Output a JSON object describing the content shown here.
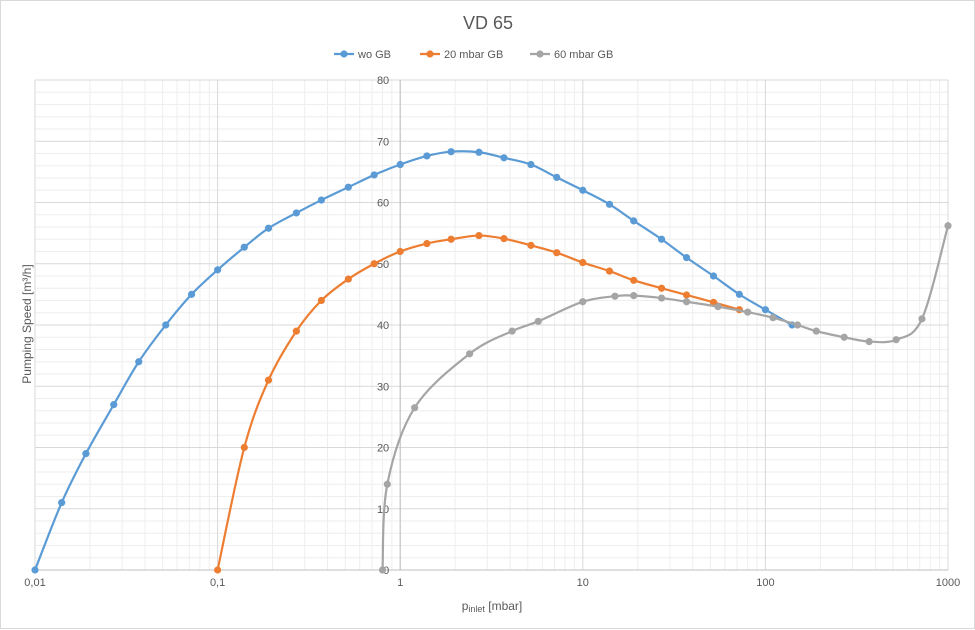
{
  "chart_data": {
    "type": "line",
    "title": "VD 65",
    "xlabel_main": "p",
    "xlabel_sub": "inlet",
    "xlabel_unit": " [mbar]",
    "ylabel": "Pumping Speed [m³/h]",
    "xscale": "log",
    "xlim": [
      0.01,
      1000
    ],
    "ylim": [
      0,
      80
    ],
    "x_tick_labels": [
      "0,01",
      "0,1",
      "1",
      "10",
      "100",
      "1000"
    ],
    "x_tick_values": [
      0.01,
      0.1,
      1,
      10,
      100,
      1000
    ],
    "y_ticks": [
      0,
      10,
      20,
      30,
      40,
      50,
      60,
      70,
      80
    ],
    "grid": true,
    "legend_position": "top",
    "series": [
      {
        "name": "wo GB",
        "color": "#5b9bd5",
        "x": [
          0.01,
          0.014,
          0.019,
          0.027,
          0.037,
          0.052,
          0.072,
          0.1,
          0.14,
          0.19,
          0.27,
          0.37,
          0.52,
          0.72,
          1.0,
          1.4,
          1.9,
          2.7,
          3.7,
          5.2,
          7.2,
          10,
          14,
          19,
          27,
          37,
          52,
          72,
          100,
          140
        ],
        "values": [
          0,
          11,
          19,
          27,
          34,
          40,
          45,
          49,
          52.7,
          55.8,
          58.3,
          60.4,
          62.5,
          64.5,
          66.2,
          67.6,
          68.3,
          68.2,
          67.3,
          66.2,
          64.1,
          62,
          59.7,
          57,
          54,
          51,
          48,
          45,
          42.5,
          40
        ]
      },
      {
        "name": "20 mbar GB",
        "color": "#ed7d31",
        "x": [
          0.1,
          0.14,
          0.19,
          0.27,
          0.37,
          0.52,
          0.72,
          1.0,
          1.4,
          1.9,
          2.7,
          3.7,
          5.2,
          7.2,
          10,
          14,
          19,
          27,
          37,
          52,
          72
        ],
        "values": [
          0,
          20,
          31,
          39,
          44,
          47.5,
          50,
          52,
          53.3,
          54,
          54.6,
          54.1,
          53,
          51.8,
          50.2,
          48.8,
          47.3,
          46,
          44.9,
          43.7,
          42.5
        ]
      },
      {
        "name": "60 mbar GB",
        "color": "#a5a5a5",
        "x": [
          0.8,
          0.85,
          1.2,
          2.4,
          4.1,
          5.7,
          10,
          15,
          19,
          27,
          37,
          55,
          80,
          110,
          150,
          190,
          270,
          370,
          520,
          720,
          1000
        ],
        "values": [
          0,
          14,
          26.5,
          35.3,
          39,
          40.6,
          43.8,
          44.7,
          44.8,
          44.4,
          43.8,
          43,
          42.1,
          41.2,
          40,
          39,
          38,
          37.3,
          37.6,
          41,
          56.2
        ]
      }
    ]
  }
}
